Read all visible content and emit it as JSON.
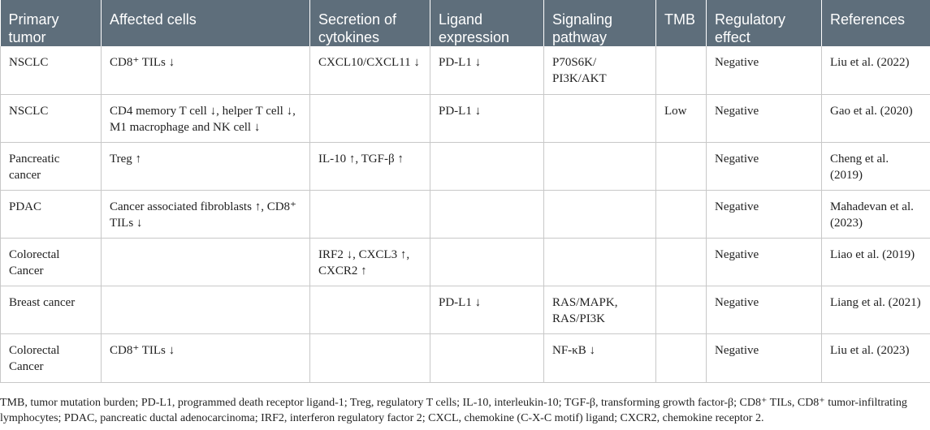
{
  "table": {
    "headers": [
      "Primary tumor",
      "Affected cells",
      "Secretion of cytokines",
      "Ligand expression",
      "Signaling pathway",
      "TMB",
      "Regulatory effect",
      "References"
    ],
    "rows": [
      [
        "NSCLC",
        "CD8⁺ TILs ↓",
        "CXCL10/CXCL11 ↓",
        "PD-L1 ↓",
        "P70S6K/ PI3K/AKT",
        "",
        "Negative",
        "Liu et al. (2022)"
      ],
      [
        "NSCLC",
        "CD4 memory T cell ↓, helper T cell ↓, M1 macrophage and NK cell ↓",
        "",
        "PD-L1 ↓",
        "",
        "Low",
        "Negative",
        "Gao et al. (2020)"
      ],
      [
        "Pancreatic cancer",
        "Treg ↑",
        "IL-10 ↑, TGF-β ↑",
        "",
        "",
        "",
        "Negative",
        "Cheng et al. (2019)"
      ],
      [
        "PDAC",
        "Cancer associated fibroblasts ↑, CD8⁺ TILs ↓",
        "",
        "",
        "",
        "",
        "Negative",
        "Mahadevan et al. (2023)"
      ],
      [
        "Colorectal Cancer",
        "",
        "IRF2 ↓, CXCL3 ↑, CXCR2 ↑",
        "",
        "",
        "",
        "Negative",
        "Liao et al. (2019)"
      ],
      [
        "Breast cancer",
        "",
        "",
        "PD-L1 ↓",
        "RAS/MAPK, RAS/PI3K",
        "",
        "Negative",
        "Liang et al. (2021)"
      ],
      [
        "Colorectal Cancer",
        "CD8⁺ TILs ↓",
        "",
        "",
        "NF-κB ↓",
        "",
        "Negative",
        "Liu et al. (2023)"
      ]
    ]
  },
  "footnote": "TMB, tumor mutation burden; PD-L1, programmed death receptor ligand-1; Treg, regulatory T cells; IL-10, interleukin-10; TGF-β, transforming growth factor-β; CD8⁺ TILs, CD8⁺ tumor-infiltrating lymphocytes; PDAC, pancreatic ductal adenocarcinoma; IRF2, interferon regulatory factor 2; CXCL, chemokine (C-X-C motif) ligand; CXCR2, chemokine receptor 2.",
  "colors": {
    "header_bg": "#5e6e7b",
    "header_text": "#ffffff",
    "grid": "#c8c8c8",
    "body_text": "#222222"
  }
}
